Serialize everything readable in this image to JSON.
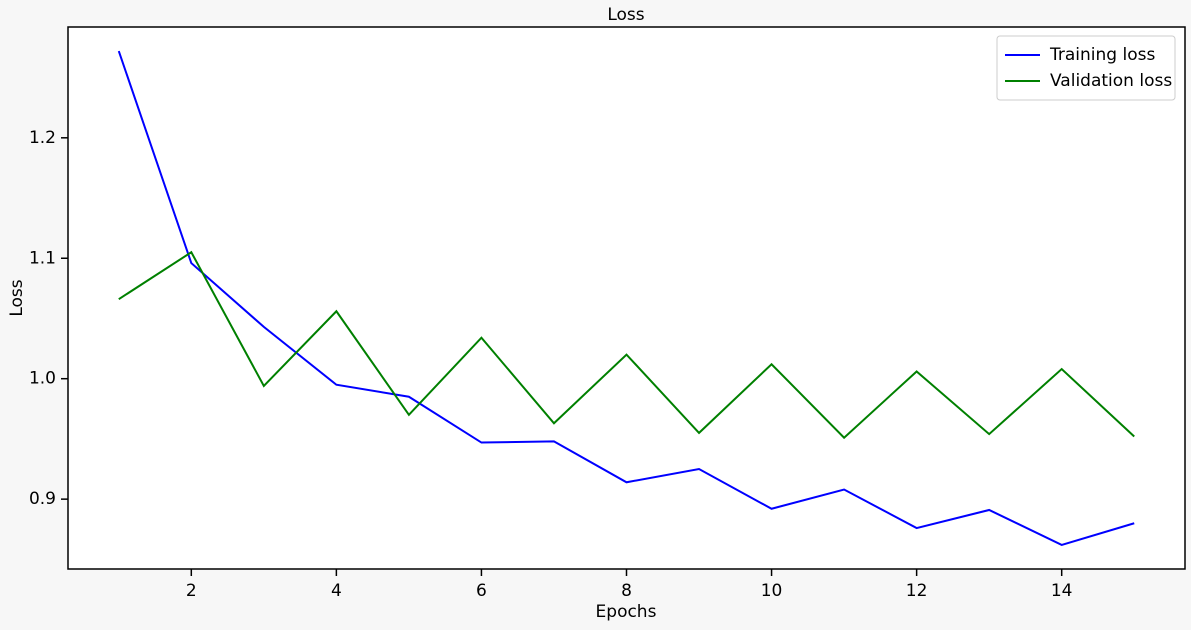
{
  "chart_data": {
    "type": "line",
    "title": "Loss",
    "xlabel": "Epochs",
    "ylabel": "Loss",
    "x": [
      1,
      2,
      3,
      4,
      5,
      6,
      7,
      8,
      9,
      10,
      11,
      12,
      13,
      14,
      15
    ],
    "series": [
      {
        "name": "Training loss",
        "color": "#0000ff",
        "values": [
          1.272,
          1.096,
          1.043,
          0.995,
          0.985,
          0.947,
          0.948,
          0.914,
          0.925,
          0.892,
          0.908,
          0.876,
          0.891,
          0.862,
          0.88
        ]
      },
      {
        "name": "Validation loss",
        "color": "#008000",
        "values": [
          1.066,
          1.105,
          0.994,
          1.056,
          0.97,
          1.034,
          0.963,
          1.02,
          0.955,
          1.012,
          0.951,
          1.006,
          0.954,
          1.008,
          0.952
        ]
      }
    ],
    "xlim": [
      0.3,
      15.7
    ],
    "ylim": [
      0.842,
      1.292
    ],
    "xticks": [
      2,
      4,
      6,
      8,
      10,
      12,
      14
    ],
    "yticks": [
      0.9,
      {
        "value": 1,
        "label": "1.0"
      },
      1.1,
      1.2
    ],
    "legend": "upper right",
    "grid": false
  }
}
